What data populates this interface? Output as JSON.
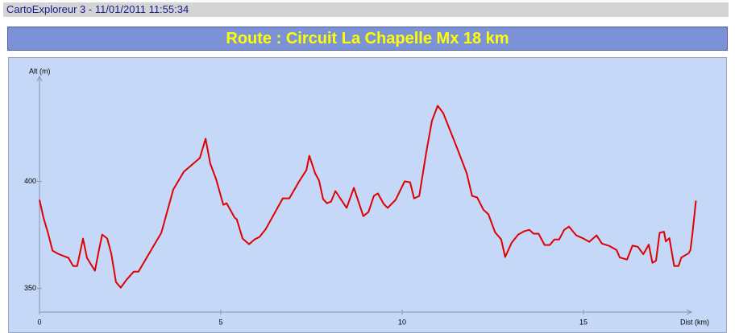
{
  "header": "CartoExploreur 3 - 11/01/2011 11:55:34",
  "chart_data": {
    "type": "line",
    "title": "Route : Circuit La Chapelle Mx 18 km",
    "y_label": "Alt (m)",
    "x_label": "Dist (km)",
    "xlim": [
      0,
      18.1
    ],
    "xticks": [
      0,
      5,
      10,
      15
    ],
    "ylim": [
      339,
      449
    ],
    "yticks": [
      350,
      400
    ],
    "grid": false,
    "series": [
      {
        "name": "Altitude",
        "color": "#e00000",
        "x": [
          0,
          0.11,
          0.24,
          0.36,
          0.51,
          0.69,
          0.8,
          0.93,
          1.04,
          1.2,
          1.31,
          1.53,
          1.64,
          1.73,
          1.87,
          1.98,
          2.11,
          2.24,
          2.4,
          2.6,
          2.73,
          3.36,
          3.69,
          3.98,
          4.42,
          4.58,
          4.71,
          4.87,
          5.07,
          5.16,
          5.38,
          5.44,
          5.6,
          5.78,
          5.93,
          6.07,
          6.24,
          6.71,
          6.89,
          7.16,
          7.36,
          7.44,
          7.6,
          7.71,
          7.82,
          7.93,
          8.04,
          8.16,
          8.47,
          8.67,
          8.93,
          9.07,
          9.22,
          9.33,
          9.49,
          9.6,
          9.82,
          10.07,
          10.22,
          10.33,
          10.47,
          10.67,
          10.82,
          10.98,
          11.13,
          11.51,
          11.78,
          11.93,
          12.07,
          12.24,
          12.38,
          12.56,
          12.73,
          12.84,
          13.02,
          13.2,
          13.36,
          13.51,
          13.62,
          13.76,
          13.93,
          14.07,
          14.2,
          14.33,
          14.47,
          14.6,
          14.8,
          15,
          15.16,
          15.36,
          15.51,
          15.71,
          15.91,
          16.0,
          16.2,
          16.35,
          16.5,
          16.65,
          16.8,
          16.9,
          17.0,
          17.1,
          17.22,
          17.27,
          17.37,
          17.5,
          17.62,
          17.7,
          17.9,
          17.95,
          18.0,
          18.05,
          18.1
        ],
        "values": [
          391.4,
          383,
          375.6,
          367.7,
          366.2,
          365,
          364.3,
          360.5,
          360.5,
          373.3,
          364.3,
          358.3,
          368,
          375.2,
          373.3,
          366.2,
          353,
          350.4,
          354.1,
          357.9,
          357.9,
          376,
          396.2,
          404.5,
          410.9,
          419.9,
          408.3,
          401.1,
          389.1,
          389.8,
          383.1,
          382.3,
          373.3,
          370.7,
          372.9,
          374.1,
          377.8,
          392.1,
          392.1,
          400,
          405.3,
          412,
          403.8,
          400.4,
          391.7,
          389.8,
          390.6,
          395.5,
          387.6,
          397,
          383.8,
          385.7,
          393.2,
          394.4,
          389.5,
          387.6,
          391.4,
          400,
          399.6,
          392.1,
          393.2,
          413.9,
          428.2,
          435.3,
          431.9,
          415.8,
          403.8,
          393.2,
          392.5,
          386.8,
          384.6,
          376.3,
          372.9,
          364.7,
          371.4,
          375.2,
          376.7,
          377.4,
          375.6,
          375.6,
          370.3,
          370.3,
          372.9,
          372.9,
          377.4,
          378.9,
          374.8,
          373.3,
          371.8,
          374.8,
          371,
          369.9,
          368,
          364.5,
          363.5,
          370,
          369.5,
          366,
          370.5,
          362,
          363,
          376,
          376.5,
          372,
          373.5,
          360.5,
          360.5,
          364.5,
          366.5,
          368,
          375,
          383,
          391
        ]
      }
    ]
  }
}
